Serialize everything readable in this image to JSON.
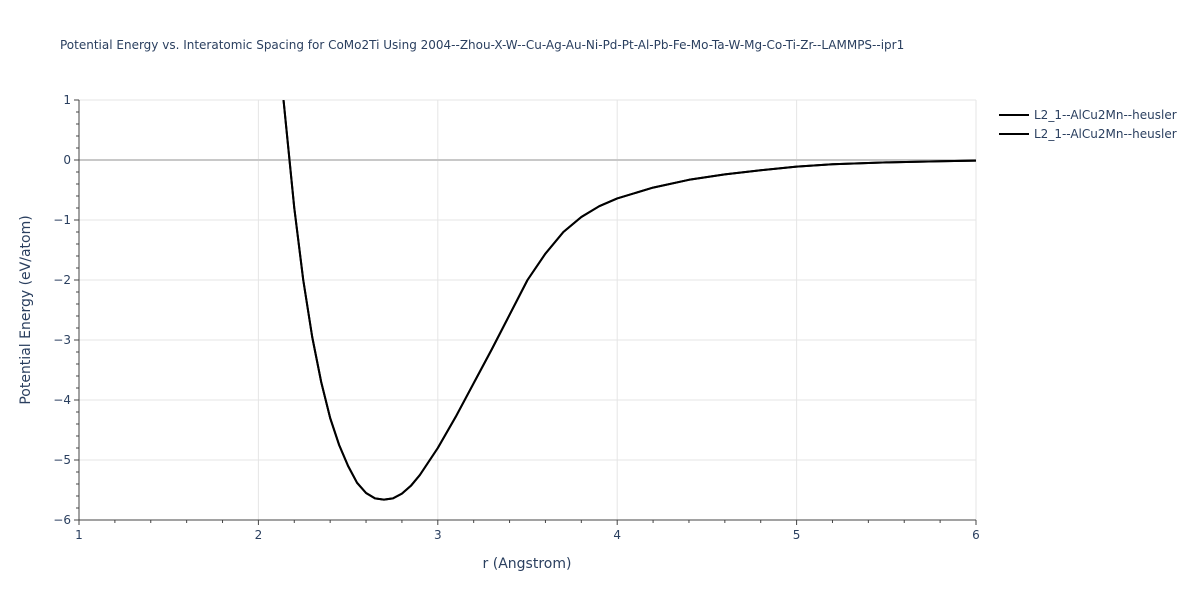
{
  "chart_data": {
    "type": "line",
    "title": "Potential Energy vs. Interatomic Spacing for CoMo2Ti Using 2004--Zhou-X-W--Cu-Ag-Au-Ni-Pd-Pt-Al-Pb-Fe-Mo-Ta-W-Mg-Co-Ti-Zr--LAMMPS--ipr1",
    "xlabel": "r (Angstrom)",
    "ylabel": "Potential Energy (eV/atom)",
    "xlim": [
      1,
      6
    ],
    "ylim": [
      -6,
      1
    ],
    "x_ticks": [
      1,
      2,
      3,
      4,
      5,
      6
    ],
    "y_ticks": [
      1,
      0,
      -1,
      -2,
      -3,
      -4,
      -5,
      -6
    ],
    "x_tick_labels": [
      "1",
      "2",
      "3",
      "4",
      "5",
      "6"
    ],
    "y_tick_labels": [
      "1",
      "0",
      "−1",
      "−2",
      "−3",
      "−4",
      "−5",
      "−6"
    ],
    "grid": true,
    "legend_position": "top-right",
    "series": [
      {
        "name": "L2_1--AlCu2Mn--heusler",
        "color": "#000000",
        "x": [
          2.14,
          2.2,
          2.25,
          2.3,
          2.35,
          2.4,
          2.45,
          2.5,
          2.55,
          2.6,
          2.65,
          2.7,
          2.75,
          2.8,
          2.85,
          2.9,
          3.0,
          3.1,
          3.2,
          3.3,
          3.4,
          3.5,
          3.6,
          3.7,
          3.8,
          3.9,
          4.0,
          4.2,
          4.4,
          4.6,
          4.8,
          5.0,
          5.2,
          5.5,
          5.8,
          6.0
        ],
        "y": [
          1.0,
          -0.8,
          -2.0,
          -2.95,
          -3.7,
          -4.3,
          -4.75,
          -5.1,
          -5.38,
          -5.55,
          -5.64,
          -5.66,
          -5.64,
          -5.56,
          -5.43,
          -5.25,
          -4.8,
          -4.28,
          -3.72,
          -3.16,
          -2.58,
          -2.0,
          -1.56,
          -1.2,
          -0.95,
          -0.77,
          -0.64,
          -0.46,
          -0.33,
          -0.24,
          -0.17,
          -0.11,
          -0.07,
          -0.04,
          -0.02,
          -0.01
        ]
      },
      {
        "name": "L2_1--AlCu2Mn--heusler",
        "color": "#000000",
        "x": [
          2.14,
          2.2,
          2.25,
          2.3,
          2.35,
          2.4,
          2.45,
          2.5,
          2.55,
          2.6,
          2.65,
          2.7,
          2.75,
          2.8,
          2.85,
          2.9,
          3.0,
          3.1,
          3.2,
          3.3,
          3.4,
          3.5,
          3.6,
          3.7,
          3.8,
          3.9,
          4.0,
          4.2,
          4.4,
          4.6,
          4.8,
          5.0,
          5.2,
          5.5,
          5.8,
          6.0
        ],
        "y": [
          1.0,
          -0.8,
          -2.0,
          -2.95,
          -3.7,
          -4.3,
          -4.75,
          -5.1,
          -5.38,
          -5.55,
          -5.64,
          -5.66,
          -5.64,
          -5.56,
          -5.43,
          -5.25,
          -4.8,
          -4.28,
          -3.72,
          -3.16,
          -2.58,
          -2.0,
          -1.56,
          -1.2,
          -0.95,
          -0.77,
          -0.64,
          -0.46,
          -0.33,
          -0.24,
          -0.17,
          -0.11,
          -0.07,
          -0.04,
          -0.02,
          -0.01
        ]
      }
    ]
  }
}
